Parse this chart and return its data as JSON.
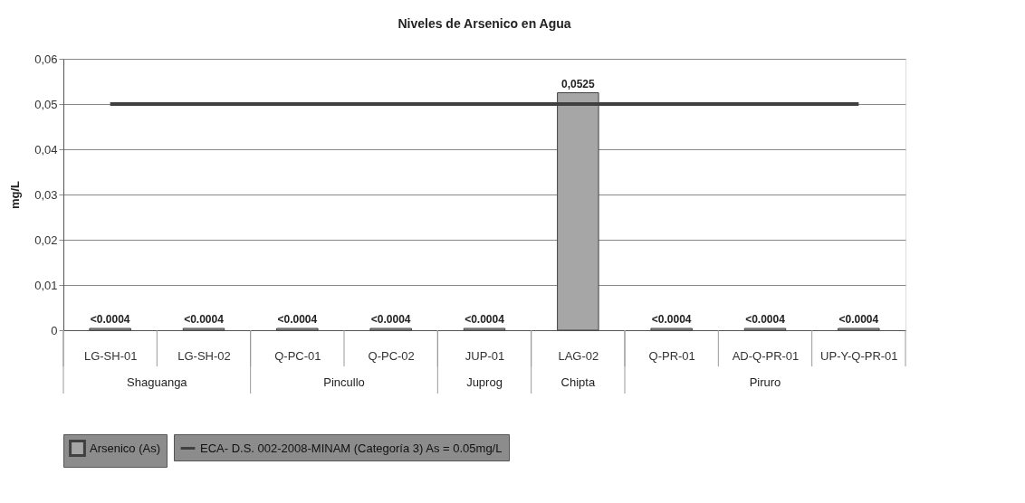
{
  "chart_data": {
    "type": "bar",
    "title": "Niveles de Arsenico en Agua",
    "ylabel": "mg/L",
    "categories": [
      "LG-SH-01",
      "LG-SH-02",
      "Q-PC-01",
      "Q-PC-02",
      "JUP-01",
      "LAG-02",
      "Q-PR-01",
      "AD-Q-PR-01",
      "UP-Y-Q-PR-01"
    ],
    "series": [
      {
        "name": "Arsenico (As)",
        "color": "#a6a6a6",
        "values": [
          0.0004,
          0.0004,
          0.0004,
          0.0004,
          0.0004,
          0.0525,
          0.0004,
          0.0004,
          0.0004
        ],
        "value_labels": [
          "<0.0004",
          "<0.0004",
          "<0.0004",
          "<0.0004",
          "<0.0004",
          "0,0525",
          "<0.0004",
          "<0.0004",
          "<0.0004"
        ]
      },
      {
        "name": "ECA- D.S. 002-2008-MINAM (Categoría 3) As = 0.05mg/L",
        "type": "line",
        "color": "#404040",
        "values": [
          0.05,
          0.05,
          0.05,
          0.05,
          0.05,
          0.05,
          0.05,
          0.05,
          0.05
        ]
      }
    ],
    "annotations": [
      "Shaguanga",
      "Pincullo",
      "Juprog",
      "Chipta",
      "Piruro"
    ],
    "ylim": [
      0,
      0.06
    ],
    "yticks": [
      0,
      {
        "value": 0.01,
        "label": "0,01"
      },
      {
        "value": 0.02,
        "label": "0,02"
      },
      {
        "value": 0.03,
        "label": "0,03"
      },
      {
        "value": 0.04,
        "label": "0,04"
      },
      {
        "value": 0.05,
        "label": "0,05"
      },
      {
        "value": 0.06,
        "label": "0,06"
      }
    ],
    "grid": "y",
    "legend": "bottom",
    "marker": "none",
    "line_style": "solid"
  }
}
